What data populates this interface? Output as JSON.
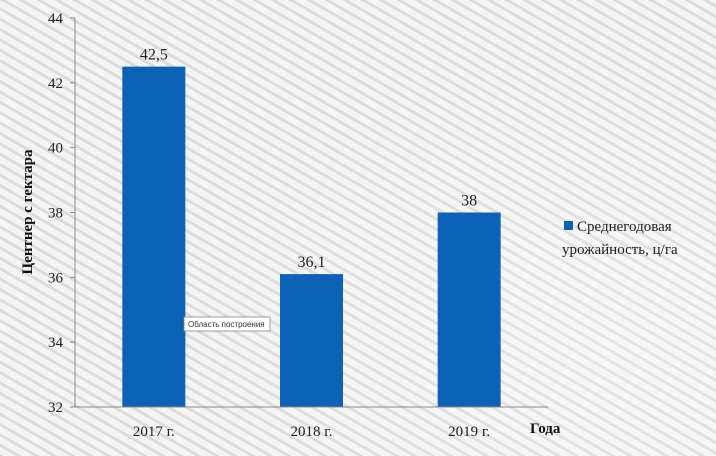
{
  "chart_data": {
    "type": "bar",
    "categories": [
      "2017 г.",
      "2018 г.",
      "2019 г."
    ],
    "series": [
      {
        "name": "Среднегодовая урожайность, ц/га",
        "values": [
          42.5,
          36.1,
          38
        ],
        "value_labels": [
          "42,5",
          "36,1",
          "38"
        ],
        "color": "#0b62b6"
      }
    ],
    "title": "",
    "xlabel": "Года",
    "ylabel": "Центнер с гектара",
    "ylim": [
      32,
      44
    ],
    "yticks": [
      32,
      34,
      36,
      38,
      40,
      42,
      44
    ],
    "grid": false,
    "legend_position": "right"
  },
  "legend": {
    "line1": "Среднегодовая",
    "line2": "урожайность, ц/га"
  },
  "tooltip": {
    "text": "Область построения"
  },
  "colors": {
    "bar": "#0b62b6",
    "axis": "#888888",
    "stripe": "#d6d6d6"
  }
}
